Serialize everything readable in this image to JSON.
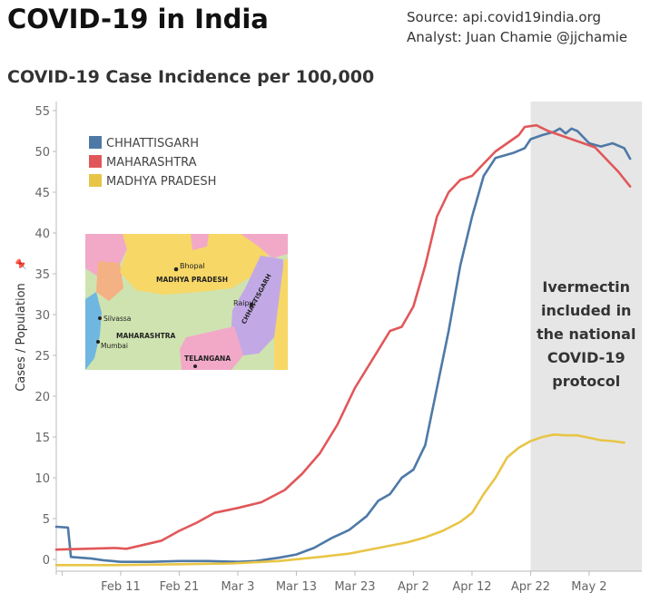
{
  "header": {
    "title": "COVID-19 in India",
    "source": "Source: api.covid19india.org",
    "analyst": "Analyst: Juan Chamie @jjchamie"
  },
  "chart_data": {
    "type": "line",
    "title": "COVID-19 Case Incidence per 100,000",
    "ylabel": "Cases / Population",
    "xlabel": "",
    "ylim": [
      0,
      56
    ],
    "yticks": [
      0,
      5,
      10,
      15,
      20,
      25,
      30,
      35,
      40,
      45,
      50,
      55
    ],
    "x_tick_labels": [
      "Feb 11",
      "Feb 21",
      "Mar 3",
      "Mar 13",
      "Mar 23",
      "Apr 2",
      "Apr 12",
      "Apr 22",
      "May 2"
    ],
    "x_tick_days": [
      11,
      21,
      31,
      41,
      51,
      61,
      71,
      81,
      91
    ],
    "x_range_days": [
      0,
      100
    ],
    "shaded_region": {
      "start_day": 81,
      "end_day": 100
    },
    "annotation": [
      "Ivermectin",
      "included in",
      "the national",
      "COVID-19",
      "protocol"
    ],
    "legend_position": "top-left",
    "grid": false,
    "series": [
      {
        "name": "CHHATTISGARH",
        "color": "#4e79a7",
        "points": [
          [
            0,
            4
          ],
          [
            2,
            3.9
          ],
          [
            2.5,
            0.3
          ],
          [
            6,
            0.1
          ],
          [
            8,
            -0.1
          ],
          [
            11,
            -0.3
          ],
          [
            16,
            -0.3
          ],
          [
            21,
            -0.2
          ],
          [
            26,
            -0.2
          ],
          [
            31,
            -0.3
          ],
          [
            34,
            -0.2
          ],
          [
            38,
            0.2
          ],
          [
            41,
            0.6
          ],
          [
            44,
            1.4
          ],
          [
            47,
            2.6
          ],
          [
            50,
            3.6
          ],
          [
            53,
            5.3
          ],
          [
            55,
            7.2
          ],
          [
            56,
            7.6
          ],
          [
            57,
            8
          ],
          [
            59,
            10
          ],
          [
            61,
            11
          ],
          [
            63,
            14
          ],
          [
            65,
            21
          ],
          [
            67,
            28
          ],
          [
            69,
            36
          ],
          [
            71,
            42
          ],
          [
            73,
            47
          ],
          [
            75,
            49.2
          ],
          [
            78,
            49.8
          ],
          [
            80,
            50.4
          ],
          [
            81,
            51.5
          ],
          [
            83,
            52
          ],
          [
            85,
            52.4
          ],
          [
            86,
            52.8
          ],
          [
            87,
            52.2
          ],
          [
            88,
            52.8
          ],
          [
            89,
            52.5
          ],
          [
            91,
            51
          ],
          [
            93,
            50.6
          ],
          [
            95,
            51
          ],
          [
            97,
            50.4
          ],
          [
            98,
            49.1
          ]
        ]
      },
      {
        "name": "MAHARASHTRA",
        "color": "#e15759",
        "points": [
          [
            0,
            1.2
          ],
          [
            5,
            1.3
          ],
          [
            10,
            1.4
          ],
          [
            12,
            1.3
          ],
          [
            15,
            1.8
          ],
          [
            18,
            2.3
          ],
          [
            21,
            3.5
          ],
          [
            24,
            4.5
          ],
          [
            27,
            5.7
          ],
          [
            31,
            6.3
          ],
          [
            35,
            7
          ],
          [
            39,
            8.5
          ],
          [
            42,
            10.5
          ],
          [
            45,
            13
          ],
          [
            48,
            16.5
          ],
          [
            51,
            21
          ],
          [
            54,
            24.5
          ],
          [
            57,
            28
          ],
          [
            59,
            28.5
          ],
          [
            61,
            31
          ],
          [
            63,
            36
          ],
          [
            65,
            42
          ],
          [
            67,
            45
          ],
          [
            69,
            46.5
          ],
          [
            71,
            47
          ],
          [
            73,
            48.5
          ],
          [
            75,
            50
          ],
          [
            77,
            51
          ],
          [
            79,
            52
          ],
          [
            80,
            53
          ],
          [
            82,
            53.2
          ],
          [
            84,
            52.5
          ],
          [
            86,
            52
          ],
          [
            88,
            51.5
          ],
          [
            90,
            51
          ],
          [
            92,
            50.5
          ],
          [
            94,
            49
          ],
          [
            96,
            47.5
          ],
          [
            98,
            45.7
          ]
        ]
      },
      {
        "name": "MADHYA PRADESH",
        "color": "#e8c547",
        "points": [
          [
            0,
            -0.7
          ],
          [
            10,
            -0.7
          ],
          [
            20,
            -0.6
          ],
          [
            30,
            -0.5
          ],
          [
            38,
            -0.2
          ],
          [
            45,
            0.3
          ],
          [
            50,
            0.7
          ],
          [
            55,
            1.4
          ],
          [
            60,
            2.1
          ],
          [
            63,
            2.7
          ],
          [
            66,
            3.5
          ],
          [
            69,
            4.6
          ],
          [
            71,
            5.7
          ],
          [
            73,
            8
          ],
          [
            75,
            10
          ],
          [
            77,
            12.5
          ],
          [
            79,
            13.7
          ],
          [
            81,
            14.5
          ],
          [
            83,
            15
          ],
          [
            85,
            15.3
          ],
          [
            87,
            15.2
          ],
          [
            89,
            15.2
          ],
          [
            91,
            14.9
          ],
          [
            93,
            14.6
          ],
          [
            95,
            14.5
          ],
          [
            97,
            14.3
          ]
        ]
      }
    ]
  },
  "map_inset": {
    "labels": [
      "Bhopal",
      "MADHYA PRADESH",
      "Raipur",
      "CHHATTISGARH",
      "Silvassa",
      "MAHARASHTRA",
      "Mumbai",
      "TELANGANA"
    ]
  }
}
